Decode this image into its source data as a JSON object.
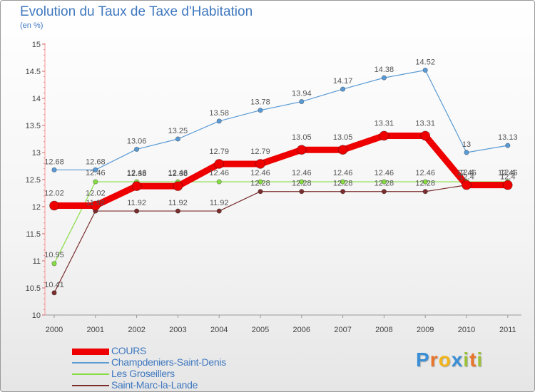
{
  "chart_data": {
    "type": "line",
    "title": "Evolution du Taux de Taxe d'Habitation",
    "subtitle": "(en %)",
    "x": [
      "2000",
      "2001",
      "2002",
      "2003",
      "2004",
      "2005",
      "2006",
      "2007",
      "2008",
      "2009",
      "2010",
      "2011"
    ],
    "ylim": [
      10,
      15
    ],
    "yticks": [
      "10",
      "10.5",
      "11",
      "11.5",
      "12",
      "12.5",
      "13",
      "13.5",
      "14",
      "14.5",
      "15"
    ],
    "grid": false,
    "legend_position": "bottom-left",
    "series": [
      {
        "name": "COURS",
        "color": "#ee0000",
        "values": [
          12.02,
          12.02,
          12.38,
          12.38,
          12.79,
          12.79,
          13.05,
          13.05,
          13.31,
          13.31,
          12.4,
          12.4
        ]
      },
      {
        "name": "Champdeniers-Saint-Denis",
        "color": "#5a9bd5",
        "values": [
          12.68,
          12.68,
          13.06,
          13.25,
          13.58,
          13.78,
          13.94,
          14.17,
          14.38,
          14.52,
          13,
          13.13
        ]
      },
      {
        "name": "Les Groseillers",
        "color": "#88dd44",
        "values": [
          10.95,
          12.46,
          12.46,
          12.46,
          12.46,
          12.46,
          12.46,
          12.46,
          12.46,
          12.46,
          12.46,
          12.46
        ]
      },
      {
        "name": "Saint-Marc-la-Lande",
        "color": "#7a2e2e",
        "values": [
          10.41,
          11.92,
          11.92,
          11.92,
          11.92,
          12.28,
          12.28,
          12.28,
          12.28,
          12.28,
          12.4,
          12.4
        ]
      }
    ]
  },
  "brand": {
    "letters": [
      "P",
      "r",
      "o",
      "x",
      "i",
      "t",
      "i"
    ],
    "colors": [
      "#3b8fd6",
      "#e8752a",
      "#f2b418",
      "#3b8fd6",
      "#9bc13b",
      "#e8752a",
      "#9bc13b"
    ]
  }
}
